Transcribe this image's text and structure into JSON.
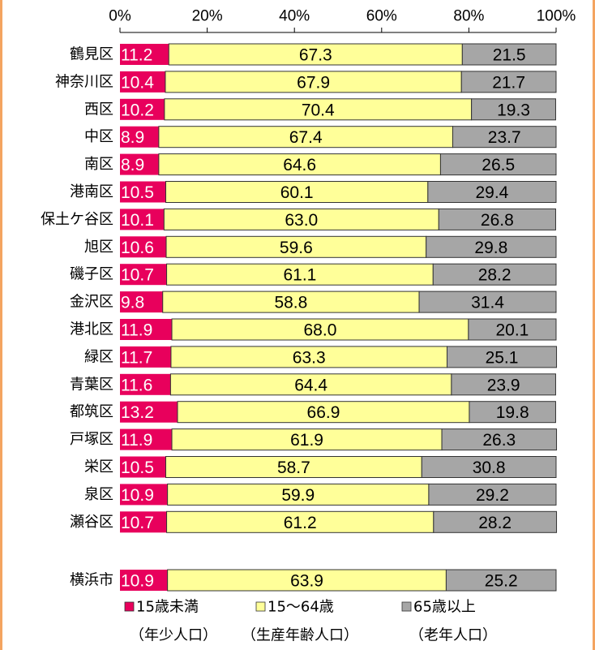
{
  "chart_data": {
    "type": "stacked-bar-horizontal",
    "categories": [
      "鶴見区",
      "神奈川区",
      "西区",
      "中区",
      "南区",
      "港南区",
      "保土ケ谷区",
      "旭区",
      "磯子区",
      "金沢区",
      "港北区",
      "緑区",
      "青葉区",
      "都筑区",
      "戸塚区",
      "栄区",
      "泉区",
      "瀬谷区",
      "横浜市"
    ],
    "series": [
      {
        "name": "15歳未満",
        "subname": "（年少人口）",
        "color": "#e8005c",
        "values": [
          11.2,
          10.4,
          10.2,
          8.9,
          8.9,
          10.5,
          10.1,
          10.6,
          10.7,
          9.8,
          11.9,
          11.7,
          11.6,
          13.2,
          11.9,
          10.5,
          10.9,
          10.7,
          10.9
        ]
      },
      {
        "name": "15～64歳",
        "subname": "（生産年齢人口）",
        "color": "#ffff99",
        "values": [
          67.3,
          67.9,
          70.4,
          67.4,
          64.6,
          60.1,
          63.0,
          59.6,
          61.1,
          58.8,
          68.0,
          63.3,
          64.4,
          66.9,
          61.9,
          58.7,
          59.9,
          61.2,
          63.9
        ],
        "value_labels": [
          "67.3",
          "67.9",
          "70.4",
          "67.4",
          "64.6",
          "60.1",
          "63.0",
          "59.6",
          "61.1",
          "58.8",
          "68.0",
          "63.3",
          "64.4",
          "66.9",
          "61.9",
          "58.7",
          "59.9",
          "61.2",
          "63.9"
        ]
      },
      {
        "name": "65歳以上",
        "subname": "（老年人口）",
        "color": "#a6a6a6",
        "values": [
          21.5,
          21.7,
          19.3,
          23.7,
          26.5,
          29.4,
          26.8,
          29.8,
          28.2,
          31.4,
          20.1,
          25.1,
          23.9,
          19.8,
          26.3,
          30.8,
          29.2,
          28.2,
          25.2
        ]
      }
    ],
    "xlim": [
      0,
      100
    ],
    "xticks": [
      {
        "value": 0,
        "label": "0%"
      },
      {
        "value": 20,
        "label": "20%"
      },
      {
        "value": 40,
        "label": "40%"
      },
      {
        "value": 60,
        "label": "60%"
      },
      {
        "value": 80,
        "label": "80%"
      },
      {
        "value": 100,
        "label": "100%"
      }
    ]
  }
}
